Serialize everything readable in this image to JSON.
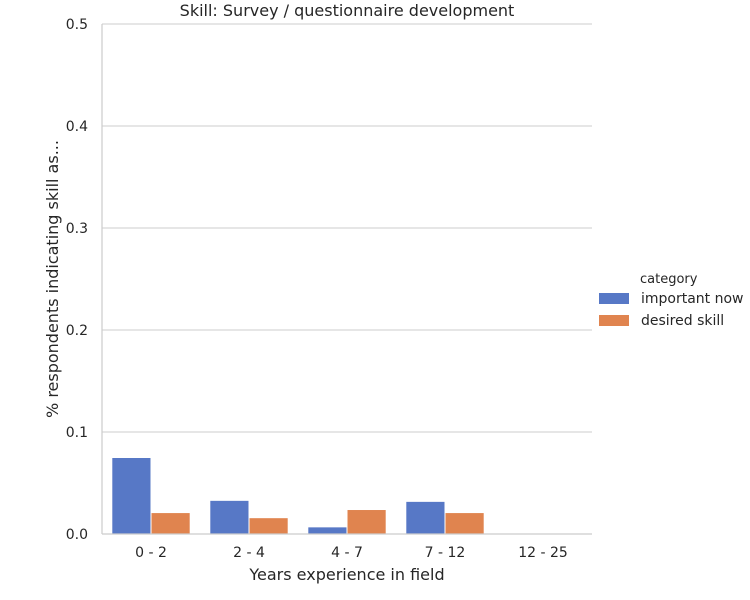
{
  "chart_data": {
    "type": "bar",
    "title": "Skill: Survey / questionnaire development",
    "xlabel": "Years experience in field",
    "ylabel": "% respondents indicating skill as...",
    "categories": [
      "0 - 2",
      "2 - 4",
      "4 - 7",
      "7 - 12",
      "12 - 25"
    ],
    "series": [
      {
        "name": "important now",
        "values": [
          0.075,
          0.033,
          0.007,
          0.032,
          0.0
        ],
        "color": "#5778c6"
      },
      {
        "name": "desired skill",
        "values": [
          0.021,
          0.016,
          0.024,
          0.021,
          0.0
        ],
        "color": "#e0844f"
      }
    ],
    "ylim": [
      0,
      0.5
    ],
    "yticks": [
      "0.0",
      "0.1",
      "0.2",
      "0.3",
      "0.4",
      "0.5"
    ],
    "grid": true,
    "legend": {
      "title": "category",
      "placement": "right"
    }
  }
}
